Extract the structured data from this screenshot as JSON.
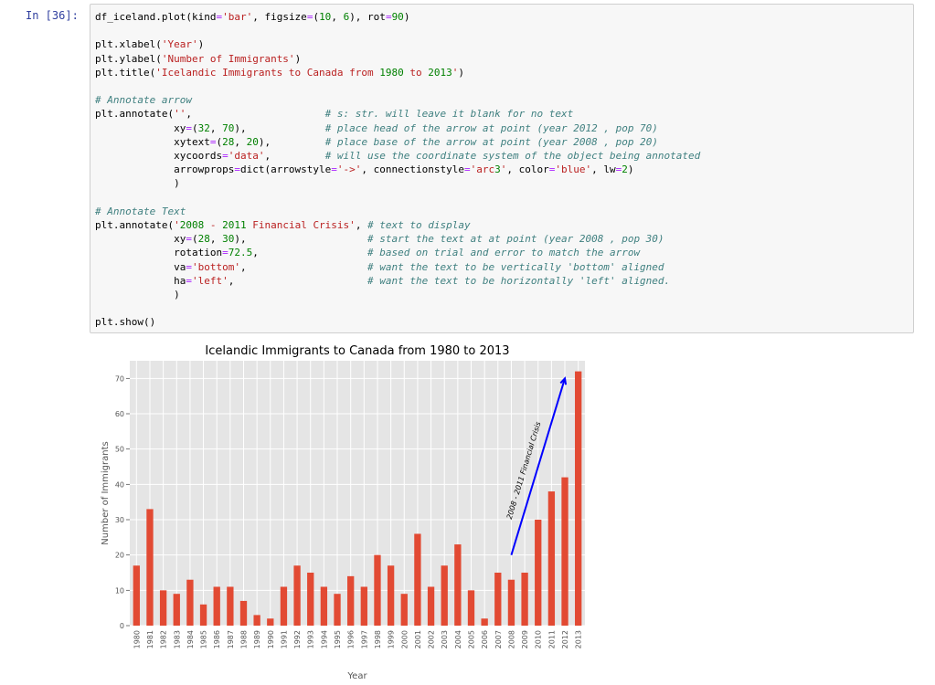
{
  "cell": {
    "prompt": "In [36]:"
  },
  "code_lines": [
    "df_iceland.plot(kind='bar', figsize=(10, 6), rot=90)",
    "",
    "plt.xlabel('Year')",
    "plt.ylabel('Number of Immigrants')",
    "plt.title('Icelandic Immigrants to Canada from 1980 to 2013')",
    "",
    "# Annotate arrow",
    "plt.annotate('',                      # s: str. will leave it blank for no text",
    "             xy=(32, 70),             # place head of the arrow at point (year 2012 , pop 70)",
    "             xytext=(28, 20),         # place base of the arrow at point (year 2008 , pop 20)",
    "             xycoords='data',         # will use the coordinate system of the object being annotated",
    "             arrowprops=dict(arrowstyle='->', connectionstyle='arc3', color='blue', lw=2)",
    "             )",
    "",
    "# Annotate Text",
    "plt.annotate('2008 - 2011 Financial Crisis', # text to display",
    "             xy=(28, 30),                    # start the text at at point (year 2008 , pop 30)",
    "             rotation=72.5,                  # based on trial and error to match the arrow",
    "             va='bottom',                    # want the text to be vertically 'bottom' aligned",
    "             ha='left',                      # want the text to be horizontally 'left' aligned.",
    "             )",
    "",
    "plt.show()"
  ],
  "chart_data": {
    "type": "bar",
    "title": "Icelandic Immigrants to Canada from 1980 to 2013",
    "xlabel": "Year",
    "ylabel": "Number of Immigrants",
    "ylim": [
      0,
      75
    ],
    "yticks": [
      0,
      10,
      20,
      30,
      40,
      50,
      60,
      70
    ],
    "grid": true,
    "bar_color": "#e24a33",
    "background_color": "#e5e5e5",
    "categories": [
      "1980",
      "1981",
      "1982",
      "1983",
      "1984",
      "1985",
      "1986",
      "1987",
      "1988",
      "1989",
      "1990",
      "1991",
      "1992",
      "1993",
      "1994",
      "1995",
      "1996",
      "1997",
      "1998",
      "1999",
      "2000",
      "2001",
      "2002",
      "2003",
      "2004",
      "2005",
      "2006",
      "2007",
      "2008",
      "2009",
      "2010",
      "2011",
      "2012",
      "2013"
    ],
    "values": [
      17,
      33,
      10,
      9,
      13,
      6,
      11,
      11,
      7,
      3,
      2,
      11,
      17,
      15,
      11,
      9,
      14,
      11,
      20,
      17,
      9,
      26,
      11,
      17,
      23,
      10,
      2,
      15,
      13,
      15,
      30,
      38,
      42,
      72
    ],
    "annotation": {
      "text": "2008 - 2011 Financial Crisis",
      "arrow_color": "#0000ff",
      "arrow_from": [
        28,
        20
      ],
      "arrow_to": [
        32,
        70
      ],
      "text_at": [
        28,
        30
      ],
      "rotation": 72.5
    }
  }
}
